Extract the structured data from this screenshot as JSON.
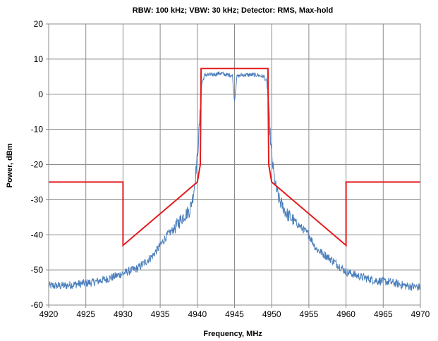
{
  "chart_data": {
    "type": "line",
    "title": "RBW: 100 kHz;  VBW: 30 kHz; Detector: RMS, Max-hold",
    "xlabel": "Frequency, MHz",
    "ylabel": "Power, dBm",
    "xlim": [
      4920,
      4970
    ],
    "ylim": [
      -60,
      20
    ],
    "xticks": [
      4920,
      4925,
      4930,
      4935,
      4940,
      4945,
      4950,
      4955,
      4960,
      4965,
      4970
    ],
    "yticks": [
      -60,
      -50,
      -40,
      -30,
      -20,
      -10,
      0,
      10,
      20
    ],
    "grid": true,
    "legend": "none",
    "colors": {
      "mask": "#e31a1c",
      "spectrum": "#4a7ebb"
    },
    "series": [
      {
        "x": [
          4920,
          4930,
          4930,
          4940,
          4940.4,
          4940.5,
          4949.5,
          4949.6,
          4950,
          4960,
          4960,
          4970
        ],
        "y": [
          -25,
          -25,
          -43,
          -25,
          -20,
          7.3,
          7.3,
          -20,
          -25,
          -43,
          -25,
          -25
        ]
      },
      {
        "x": [
          4920,
          4922,
          4924,
          4926,
          4928,
          4930,
          4932,
          4934,
          4936,
          4937,
          4938,
          4939,
          4939.5,
          4940,
          4940.3,
          4940.6,
          4941,
          4942,
          4943,
          4944,
          4944.7,
          4945,
          4945.3,
          4946,
          4947,
          4948,
          4949,
          4949.4,
          4949.7,
          4950,
          4950.5,
          4951,
          4952,
          4953,
          4955,
          4956,
          4958,
          4960,
          4962,
          4964,
          4966,
          4968,
          4970
        ],
        "y": [
          -54.5,
          -54.5,
          -54,
          -53.5,
          -52.5,
          -51,
          -49.5,
          -46,
          -40,
          -38,
          -35,
          -33,
          -28,
          -18,
          -8,
          3,
          5.5,
          5.5,
          6,
          5.5,
          5.5,
          -2,
          5,
          5.5,
          5.5,
          5.5,
          5,
          3,
          -8,
          -18,
          -26,
          -30,
          -34,
          -36,
          -40,
          -44,
          -47,
          -50.5,
          -52,
          -53,
          -53.5,
          -54.5,
          -55
        ]
      }
    ]
  }
}
